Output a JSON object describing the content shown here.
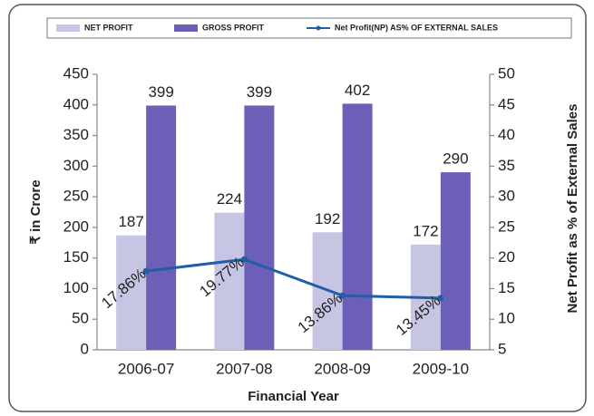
{
  "chart_data": {
    "type": "bar",
    "categories": [
      "2006-07",
      "2007-08",
      "2008-09",
      "2009-10"
    ],
    "series": [
      {
        "name": "NET PROFIT",
        "color": "#c6c6e4",
        "values": [
          187,
          224,
          192,
          172
        ]
      },
      {
        "name": "GROSS PROFIT",
        "color": "#6b5fb8",
        "values": [
          399,
          399,
          402,
          290
        ]
      },
      {
        "name": "Net Profit(NP) AS% OF EXTERNAL SALES",
        "color": "#1f5fa8",
        "axis": "y2",
        "type": "line",
        "values": [
          17.86,
          19.77,
          13.86,
          13.45
        ],
        "value_labels": [
          "17.86%",
          "19.77%",
          "13.86%",
          "13.45%"
        ]
      }
    ],
    "ylabel": "₹ in Crore",
    "y2label": "Net Profit as % of External Sales",
    "xlabel": "Financial Year",
    "ylim": [
      0,
      450
    ],
    "yticks": [
      0,
      50,
      100,
      150,
      200,
      250,
      300,
      350,
      400,
      450
    ],
    "y2lim": [
      5,
      50
    ],
    "y2ticks": [
      5,
      10,
      15,
      20,
      25,
      30,
      35,
      40,
      45,
      50
    ],
    "legend": "top"
  }
}
